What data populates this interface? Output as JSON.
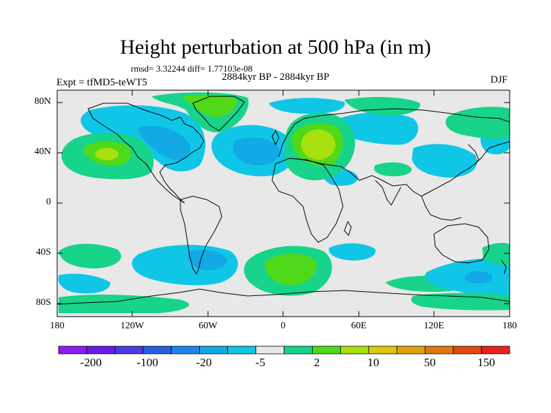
{
  "title": "Height perturbation at 500 hPa (in m)",
  "stats": "rmsd= 3.32244 diff= 1.77103e-08",
  "period": "2884kyr BP - 2884kyr BP",
  "experiment": "Expt = tfMD5-teWT5",
  "season": "DJF",
  "map": {
    "projection": "cylindrical equidistant",
    "lat_labels": [
      "80N",
      "40N",
      "0",
      "40S",
      "80S"
    ],
    "lon_labels": [
      "180",
      "120W",
      "60W",
      "0",
      "60E",
      "120E",
      "180"
    ],
    "background_color": "#e8e8e8"
  },
  "colorbar": {
    "colors": [
      "#8c1cf0",
      "#6a1ce6",
      "#4a3ce0",
      "#2a5fe0",
      "#1f86e6",
      "#13a8e6",
      "#10c6e6",
      "#e8e8e8",
      "#18d38a",
      "#50d81a",
      "#a8e010",
      "#dcc80c",
      "#e0a00a",
      "#e07810",
      "#e04c10",
      "#e82222"
    ],
    "labels": [
      "-200",
      "-100",
      "-20",
      "-5",
      "2",
      "10",
      "50",
      "150"
    ]
  }
}
